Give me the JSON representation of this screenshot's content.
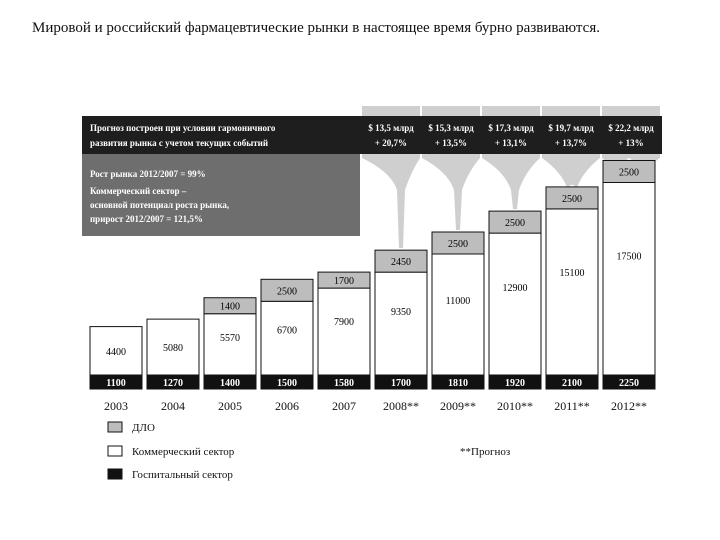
{
  "intro_text": "Мировой и российский фармацевтические рынки в настоящее время бурно развиваются.",
  "header": {
    "line1": "Прогноз построен при условии гармоничного",
    "line2": "развития рынка с учетом текущих событий"
  },
  "forecasts": [
    {
      "amount": "$ 13,5 млрд",
      "growth": "+ 20,7%"
    },
    {
      "amount": "$ 15,3 млрд",
      "growth": "+ 13,5%"
    },
    {
      "amount": "$ 17,3 млрд",
      "growth": "+ 13,1%"
    },
    {
      "amount": "$ 19,7 млрд",
      "growth": "+ 13,7%"
    },
    {
      "amount": "$ 22,2 млрд",
      "growth": "+ 13%"
    }
  ],
  "info_box": {
    "line1": "Рост рынка 2012/2007 = 99%",
    "line2": "Коммерческий сектор –",
    "line3": "основной потенциал роста рынка,",
    "line4": "прирост 2012/2007 = 121,5%"
  },
  "chart_data": {
    "type": "bar",
    "stacked": true,
    "categories": [
      "2003",
      "2004",
      "2005",
      "2006",
      "2007",
      "2008**",
      "2009**",
      "2010**",
      "2011**",
      "2012**"
    ],
    "series": [
      {
        "name": "Госпитальный сектор",
        "color": "#111111",
        "values": [
          1100,
          1270,
          1400,
          1500,
          1580,
          1700,
          1810,
          1920,
          2100,
          2250
        ]
      },
      {
        "name": "Коммерческий сектор",
        "color": "#ffffff",
        "values": [
          4400,
          5080,
          5570,
          6700,
          7900,
          9350,
          11000,
          12900,
          15100,
          17500
        ]
      },
      {
        "name": "ДЛО",
        "color": "#bdbdbd",
        "values": [
          null,
          null,
          1400,
          2500,
          1700,
          2450,
          2500,
          2500,
          2500,
          2500
        ]
      }
    ]
  },
  "legend": {
    "dlo": "ДЛО",
    "commercial": "Коммерческий сектор",
    "hospital": "Госпитальный сектор",
    "forecast_note": "**Прогноз"
  }
}
